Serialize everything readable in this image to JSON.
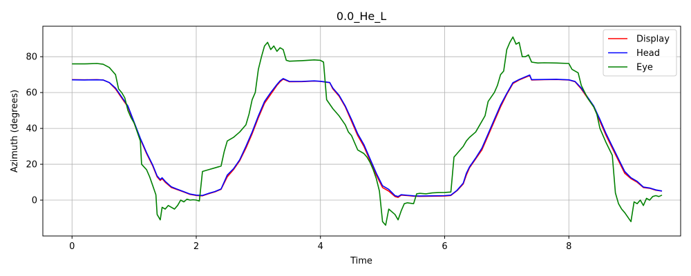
{
  "chart_data": {
    "type": "line",
    "title": "0.0_He_L",
    "xlabel": "Time",
    "ylabel": "Azimuth (degrees)",
    "xlim": [
      -0.47,
      9.8
    ],
    "ylim": [
      -20,
      97
    ],
    "xticks": [
      0,
      2,
      4,
      6,
      8
    ],
    "yticks": [
      0,
      20,
      40,
      60,
      80
    ],
    "grid": true,
    "legend_position": "top-right",
    "series": [
      {
        "name": "Display",
        "color": "#ff0000",
        "points": [
          [
            0,
            67.2
          ],
          [
            0.2,
            67.1
          ],
          [
            0.4,
            67.2
          ],
          [
            0.5,
            67.0
          ],
          [
            0.6,
            65.5
          ],
          [
            0.7,
            62
          ],
          [
            0.8,
            57
          ],
          [
            0.9,
            52
          ],
          [
            1.0,
            43
          ],
          [
            1.1,
            34
          ],
          [
            1.2,
            26
          ],
          [
            1.3,
            19
          ],
          [
            1.37,
            13
          ],
          [
            1.42,
            11
          ],
          [
            1.45,
            12
          ],
          [
            1.5,
            10
          ],
          [
            1.6,
            7
          ],
          [
            1.7,
            5.8
          ],
          [
            1.8,
            4.5
          ],
          [
            1.9,
            3.2
          ],
          [
            2.0,
            2.6
          ],
          [
            2.1,
            2.4
          ],
          [
            2.2,
            3.6
          ],
          [
            2.3,
            4.6
          ],
          [
            2.4,
            6
          ],
          [
            2.5,
            13
          ],
          [
            2.6,
            17
          ],
          [
            2.7,
            22
          ],
          [
            2.8,
            29
          ],
          [
            2.9,
            37
          ],
          [
            3.0,
            46
          ],
          [
            3.1,
            54
          ],
          [
            3.2,
            59
          ],
          [
            3.3,
            64
          ],
          [
            3.35,
            66
          ],
          [
            3.4,
            67.5
          ],
          [
            3.5,
            66
          ],
          [
            3.7,
            66.1
          ],
          [
            3.9,
            66.4
          ],
          [
            4.0,
            66.2
          ],
          [
            4.15,
            65.5
          ],
          [
            4.2,
            62
          ],
          [
            4.3,
            58
          ],
          [
            4.4,
            52
          ],
          [
            4.5,
            44
          ],
          [
            4.6,
            36
          ],
          [
            4.7,
            30
          ],
          [
            4.8,
            22
          ],
          [
            4.9,
            14
          ],
          [
            5.0,
            7
          ],
          [
            5.1,
            5
          ],
          [
            5.2,
            2
          ],
          [
            5.25,
            1.5
          ],
          [
            5.3,
            2.8
          ],
          [
            5.4,
            2.5
          ],
          [
            5.5,
            2.2
          ],
          [
            5.6,
            2.1
          ],
          [
            5.8,
            2.2
          ],
          [
            6.0,
            2.3
          ],
          [
            6.1,
            2.6
          ],
          [
            6.2,
            5.3
          ],
          [
            6.3,
            9
          ],
          [
            6.35,
            14
          ],
          [
            6.4,
            18
          ],
          [
            6.5,
            23
          ],
          [
            6.6,
            28
          ],
          [
            6.7,
            36
          ],
          [
            6.8,
            44
          ],
          [
            6.9,
            52
          ],
          [
            7.0,
            59
          ],
          [
            7.1,
            65
          ],
          [
            7.2,
            67
          ],
          [
            7.3,
            68.5
          ],
          [
            7.37,
            69.5
          ],
          [
            7.4,
            67
          ],
          [
            7.6,
            67.2
          ],
          [
            7.8,
            67.3
          ],
          [
            8.0,
            67
          ],
          [
            8.1,
            66
          ],
          [
            8.2,
            62
          ],
          [
            8.3,
            57
          ],
          [
            8.4,
            52
          ],
          [
            8.5,
            44
          ],
          [
            8.6,
            36
          ],
          [
            8.7,
            29
          ],
          [
            8.8,
            22
          ],
          [
            8.9,
            15
          ],
          [
            9.0,
            12
          ],
          [
            9.1,
            10
          ],
          [
            9.2,
            7
          ],
          [
            9.3,
            6.6
          ],
          [
            9.4,
            5.5
          ],
          [
            9.5,
            5
          ]
        ]
      },
      {
        "name": "Head",
        "color": "#0000ff",
        "points": [
          [
            0,
            67.1
          ],
          [
            0.2,
            67.0
          ],
          [
            0.4,
            67.1
          ],
          [
            0.5,
            67.0
          ],
          [
            0.6,
            65.6
          ],
          [
            0.7,
            62.5
          ],
          [
            0.8,
            57.5
          ],
          [
            0.9,
            52.5
          ],
          [
            1.0,
            43.5
          ],
          [
            1.1,
            34.5
          ],
          [
            1.2,
            26.5
          ],
          [
            1.3,
            19.5
          ],
          [
            1.37,
            13.5
          ],
          [
            1.42,
            11.5
          ],
          [
            1.45,
            12.5
          ],
          [
            1.5,
            10.5
          ],
          [
            1.6,
            7.4
          ],
          [
            1.7,
            6
          ],
          [
            1.8,
            4.7
          ],
          [
            1.9,
            3.4
          ],
          [
            2.0,
            2.8
          ],
          [
            2.1,
            2.6
          ],
          [
            2.2,
            3.8
          ],
          [
            2.3,
            4.8
          ],
          [
            2.4,
            6.2
          ],
          [
            2.5,
            14
          ],
          [
            2.6,
            17.5
          ],
          [
            2.7,
            22.5
          ],
          [
            2.8,
            30
          ],
          [
            2.9,
            38
          ],
          [
            3.0,
            47
          ],
          [
            3.1,
            55
          ],
          [
            3.2,
            60
          ],
          [
            3.3,
            64.5
          ],
          [
            3.35,
            66.5
          ],
          [
            3.4,
            67.8
          ],
          [
            3.5,
            66.2
          ],
          [
            3.7,
            66.2
          ],
          [
            3.9,
            66.5
          ],
          [
            4.0,
            66.3
          ],
          [
            4.15,
            65.6
          ],
          [
            4.2,
            62.5
          ],
          [
            4.3,
            58.5
          ],
          [
            4.4,
            52.5
          ],
          [
            4.5,
            45
          ],
          [
            4.6,
            37
          ],
          [
            4.7,
            31
          ],
          [
            4.8,
            23
          ],
          [
            4.9,
            15
          ],
          [
            5.0,
            8
          ],
          [
            5.1,
            6
          ],
          [
            5.2,
            2.5
          ],
          [
            5.25,
            2
          ],
          [
            5.3,
            3
          ],
          [
            5.4,
            2.7
          ],
          [
            5.5,
            2.4
          ],
          [
            5.6,
            2.3
          ],
          [
            5.8,
            2.4
          ],
          [
            6.0,
            2.5
          ],
          [
            6.1,
            2.8
          ],
          [
            6.2,
            5.5
          ],
          [
            6.3,
            9.5
          ],
          [
            6.35,
            15
          ],
          [
            6.4,
            18.5
          ],
          [
            6.5,
            23.5
          ],
          [
            6.6,
            29
          ],
          [
            6.7,
            37
          ],
          [
            6.8,
            45
          ],
          [
            6.9,
            53
          ],
          [
            7.0,
            59.5
          ],
          [
            7.1,
            65.5
          ],
          [
            7.2,
            67.3
          ],
          [
            7.3,
            68.8
          ],
          [
            7.37,
            69.8
          ],
          [
            7.4,
            67.2
          ],
          [
            7.6,
            67.3
          ],
          [
            7.8,
            67.4
          ],
          [
            8.0,
            67.1
          ],
          [
            8.1,
            66.2
          ],
          [
            8.2,
            62.5
          ],
          [
            8.3,
            57.5
          ],
          [
            8.4,
            52.5
          ],
          [
            8.5,
            45
          ],
          [
            8.6,
            37
          ],
          [
            8.7,
            30
          ],
          [
            8.8,
            23
          ],
          [
            8.9,
            16
          ],
          [
            9.0,
            12.5
          ],
          [
            9.1,
            10.5
          ],
          [
            9.2,
            7.3
          ],
          [
            9.3,
            6.8
          ],
          [
            9.4,
            5.7
          ],
          [
            9.5,
            5.1
          ]
        ]
      },
      {
        "name": "Eye",
        "color": "#008000",
        "points": [
          [
            0,
            76
          ],
          [
            0.2,
            76
          ],
          [
            0.4,
            76.2
          ],
          [
            0.5,
            75.8
          ],
          [
            0.6,
            74
          ],
          [
            0.65,
            72
          ],
          [
            0.7,
            70
          ],
          [
            0.75,
            62
          ],
          [
            0.8,
            60
          ],
          [
            0.85,
            57
          ],
          [
            0.9,
            50
          ],
          [
            0.95,
            46
          ],
          [
            1.0,
            43
          ],
          [
            1.05,
            38
          ],
          [
            1.1,
            33
          ],
          [
            1.12,
            20
          ],
          [
            1.2,
            17
          ],
          [
            1.25,
            13
          ],
          [
            1.3,
            8
          ],
          [
            1.35,
            3
          ],
          [
            1.37,
            -8
          ],
          [
            1.42,
            -11
          ],
          [
            1.45,
            -4
          ],
          [
            1.5,
            -5
          ],
          [
            1.55,
            -3
          ],
          [
            1.6,
            -4
          ],
          [
            1.65,
            -5
          ],
          [
            1.7,
            -3
          ],
          [
            1.75,
            0
          ],
          [
            1.8,
            -1
          ],
          [
            1.85,
            0.5
          ],
          [
            1.9,
            0
          ],
          [
            1.95,
            0.2
          ],
          [
            2.0,
            0
          ],
          [
            2.05,
            -0.5
          ],
          [
            2.1,
            16
          ],
          [
            2.2,
            17
          ],
          [
            2.3,
            18
          ],
          [
            2.4,
            19
          ],
          [
            2.45,
            27
          ],
          [
            2.5,
            33
          ],
          [
            2.6,
            35
          ],
          [
            2.7,
            38
          ],
          [
            2.8,
            42
          ],
          [
            2.85,
            48
          ],
          [
            2.9,
            56
          ],
          [
            2.95,
            60
          ],
          [
            3.0,
            73
          ],
          [
            3.05,
            80
          ],
          [
            3.1,
            86
          ],
          [
            3.15,
            88
          ],
          [
            3.2,
            84
          ],
          [
            3.25,
            86
          ],
          [
            3.3,
            83
          ],
          [
            3.35,
            85
          ],
          [
            3.4,
            84
          ],
          [
            3.45,
            78
          ],
          [
            3.5,
            77.5
          ],
          [
            3.7,
            77.8
          ],
          [
            3.9,
            78.2
          ],
          [
            4.0,
            78
          ],
          [
            4.05,
            77
          ],
          [
            4.1,
            56
          ],
          [
            4.2,
            51
          ],
          [
            4.3,
            47
          ],
          [
            4.4,
            42
          ],
          [
            4.45,
            38
          ],
          [
            4.5,
            36
          ],
          [
            4.55,
            32
          ],
          [
            4.6,
            28
          ],
          [
            4.7,
            26
          ],
          [
            4.75,
            24
          ],
          [
            4.8,
            21
          ],
          [
            4.85,
            17
          ],
          [
            4.9,
            12
          ],
          [
            4.95,
            5
          ],
          [
            5.0,
            -12
          ],
          [
            5.05,
            -14
          ],
          [
            5.1,
            -5
          ],
          [
            5.2,
            -8
          ],
          [
            5.25,
            -11
          ],
          [
            5.3,
            -6
          ],
          [
            5.35,
            -2
          ],
          [
            5.4,
            -1.5
          ],
          [
            5.5,
            -2
          ],
          [
            5.55,
            3.5
          ],
          [
            5.6,
            3.8
          ],
          [
            5.7,
            3.5
          ],
          [
            5.8,
            4
          ],
          [
            5.9,
            4.2
          ],
          [
            6.0,
            4.3
          ],
          [
            6.1,
            4.5
          ],
          [
            6.15,
            24
          ],
          [
            6.2,
            26
          ],
          [
            6.3,
            30
          ],
          [
            6.35,
            33
          ],
          [
            6.4,
            35
          ],
          [
            6.5,
            38
          ],
          [
            6.6,
            44
          ],
          [
            6.65,
            47
          ],
          [
            6.7,
            55
          ],
          [
            6.8,
            60
          ],
          [
            6.85,
            64
          ],
          [
            6.9,
            70
          ],
          [
            6.95,
            72
          ],
          [
            7.0,
            84
          ],
          [
            7.05,
            88
          ],
          [
            7.1,
            91
          ],
          [
            7.15,
            87
          ],
          [
            7.2,
            88
          ],
          [
            7.25,
            80
          ],
          [
            7.3,
            80
          ],
          [
            7.35,
            81
          ],
          [
            7.4,
            77
          ],
          [
            7.5,
            76.5
          ],
          [
            7.6,
            76.6
          ],
          [
            7.8,
            76.5
          ],
          [
            8.0,
            76.2
          ],
          [
            8.05,
            73
          ],
          [
            8.15,
            71
          ],
          [
            8.2,
            64
          ],
          [
            8.3,
            57
          ],
          [
            8.4,
            52
          ],
          [
            8.45,
            48
          ],
          [
            8.5,
            40
          ],
          [
            8.55,
            36
          ],
          [
            8.6,
            32
          ],
          [
            8.7,
            25
          ],
          [
            8.75,
            4
          ],
          [
            8.8,
            -2
          ],
          [
            8.85,
            -5
          ],
          [
            8.9,
            -7
          ],
          [
            9.0,
            -12
          ],
          [
            9.05,
            -1
          ],
          [
            9.1,
            -2
          ],
          [
            9.15,
            0
          ],
          [
            9.2,
            -3
          ],
          [
            9.25,
            1
          ],
          [
            9.3,
            0
          ],
          [
            9.35,
            2
          ],
          [
            9.4,
            2.5
          ],
          [
            9.45,
            2
          ],
          [
            9.5,
            2.8
          ]
        ]
      }
    ]
  }
}
